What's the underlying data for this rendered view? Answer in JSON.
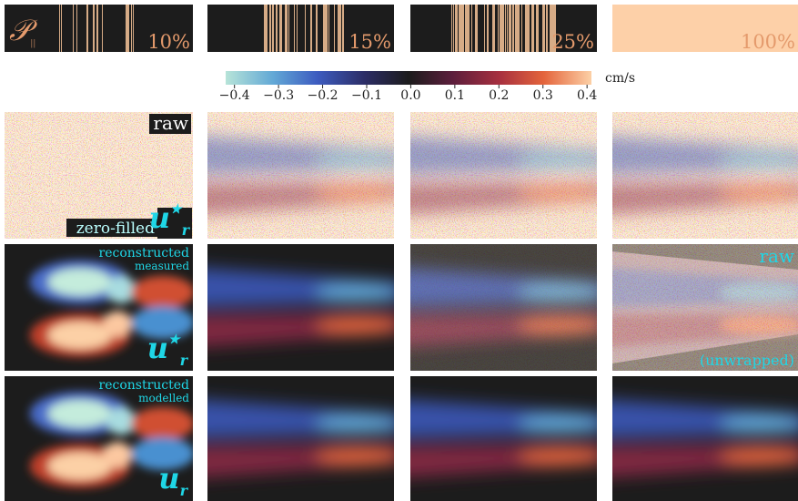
{
  "sampling_masks": [
    {
      "label": "10%"
    },
    {
      "label": "15%"
    },
    {
      "label": "25%"
    },
    {
      "label": "100%"
    }
  ],
  "mask_symbol": {
    "main": "𝒫",
    "sub": "||"
  },
  "colorbar": {
    "unit": "cm/s",
    "lim": [
      -0.42,
      0.41
    ],
    "ticks": [
      {
        "value": -0.4,
        "label": "−0.4"
      },
      {
        "value": -0.3,
        "label": "−0.3"
      },
      {
        "value": -0.2,
        "label": "−0.2"
      },
      {
        "value": -0.1,
        "label": "−0.1"
      },
      {
        "value": 0.0,
        "label": "0.0"
      },
      0.1,
      0.2,
      0.3,
      0.4
    ]
  },
  "annotations": {
    "raw": "raw",
    "zero_filled": "zero-filled",
    "reconstructed": "reconstructed",
    "measured": "measured",
    "modelled": "modelled",
    "raw_unwrapped": "raw",
    "unwrapped": "(unwrapped)"
  },
  "symbols": {
    "measured": {
      "main": "u",
      "sub": "r",
      "sup": "★"
    },
    "modelled": {
      "main": "u",
      "sub": "r"
    }
  }
}
